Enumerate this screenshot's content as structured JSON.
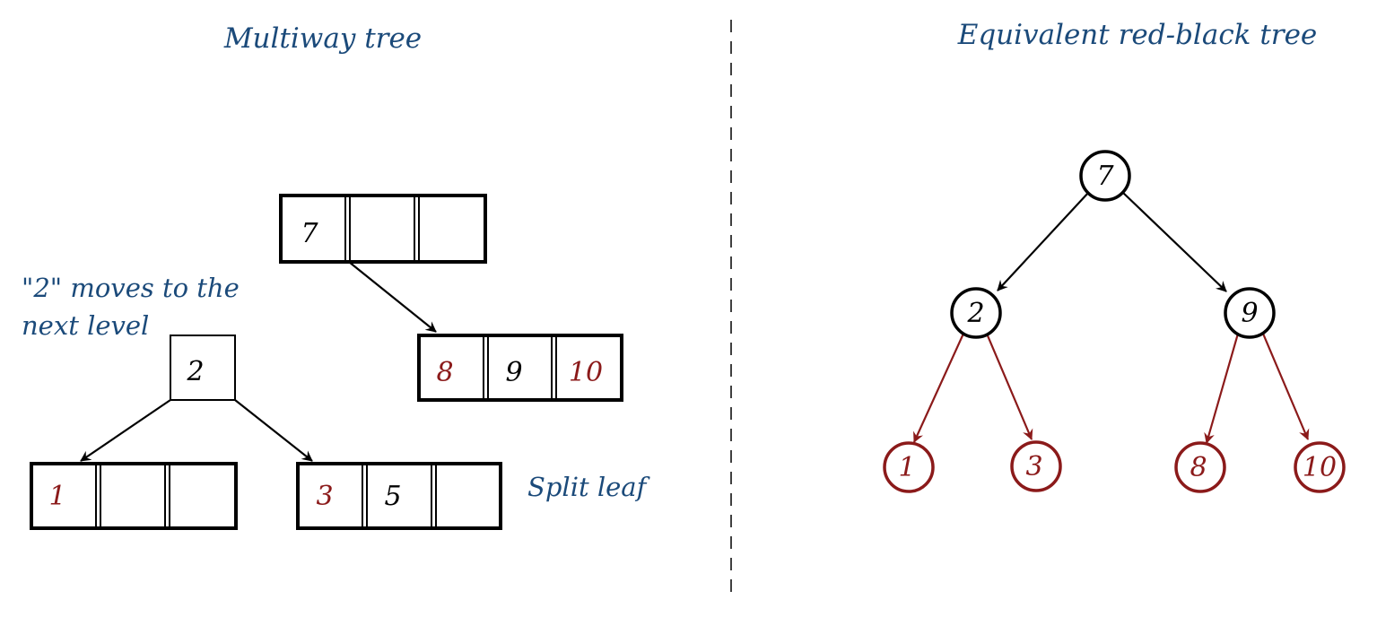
{
  "colors": {
    "title": "#1b4a7a",
    "black_key": "#000000",
    "red_key": "#8b1a1a"
  },
  "left": {
    "title": "Multiway tree",
    "note_line1": "\"2\" moves to the",
    "note_line2": "next level",
    "split_label": "Split leaf",
    "root_node": {
      "keys": [
        "7",
        "",
        ""
      ]
    },
    "promoted_node": {
      "keys": [
        "2"
      ]
    },
    "right_leaf": {
      "keys": [
        "8",
        "9",
        "10"
      ]
    },
    "left_leaf": {
      "keys": [
        "1",
        "",
        ""
      ]
    },
    "split_leaf": {
      "keys": [
        "3",
        "5",
        ""
      ]
    }
  },
  "right": {
    "title": "Equivalent red-black tree",
    "nodes": {
      "root": "7",
      "left": "2",
      "right": "9",
      "ll": "1",
      "lr": "3",
      "rl": "8",
      "rr": "10"
    }
  }
}
